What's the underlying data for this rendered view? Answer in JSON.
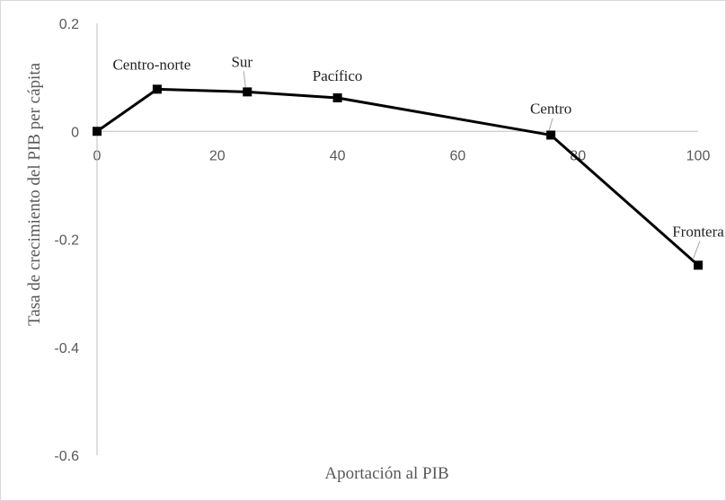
{
  "chart_data": {
    "type": "line",
    "title": "",
    "xlabel": "Aportación al PIB",
    "ylabel": "Tasa de crecimiento del PIB per cápita",
    "xlim": [
      0,
      100
    ],
    "ylim": [
      -0.6,
      0.2
    ],
    "x_ticks": [
      "0",
      "20",
      "40",
      "60",
      "80",
      "100"
    ],
    "y_ticks": [
      "0.2",
      "0",
      "-0.2",
      "-0.4",
      "-0.6"
    ],
    "grid": false,
    "legend": "none",
    "series": [
      {
        "color": "#000000",
        "points": [
          {
            "x": 0,
            "y": 0.0,
            "label": ""
          },
          {
            "x": 10,
            "y": 0.078,
            "label": "Centro-norte"
          },
          {
            "x": 25,
            "y": 0.073,
            "label": "Sur"
          },
          {
            "x": 40,
            "y": 0.062,
            "label": "Pacífico"
          },
          {
            "x": 75.5,
            "y": -0.007,
            "label": "Centro"
          },
          {
            "x": 100,
            "y": -0.248,
            "label": "Frontera"
          }
        ]
      }
    ]
  }
}
